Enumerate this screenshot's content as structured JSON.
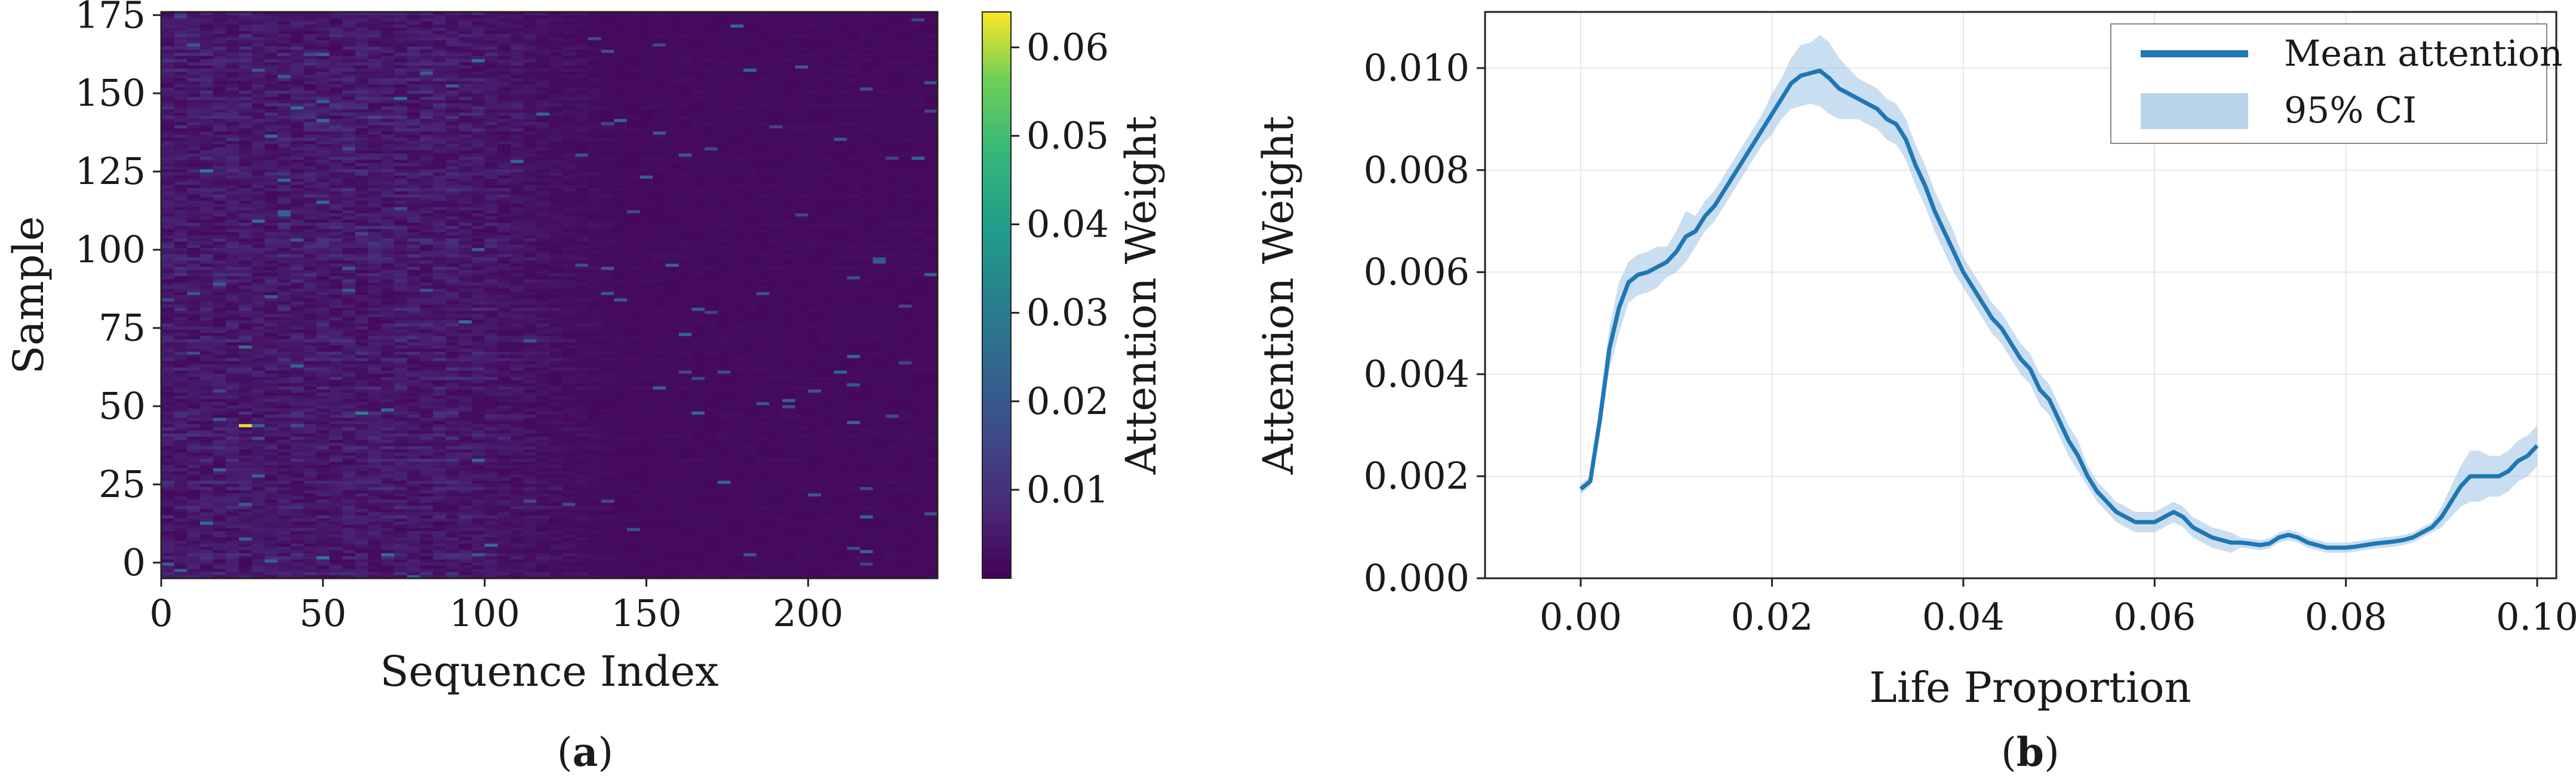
{
  "chart_data": [
    {
      "type": "heatmap",
      "panel_label": "a",
      "xlabel": "Sequence Index",
      "ylabel": "Sample",
      "xlim": [
        0,
        240
      ],
      "ylim": [
        -5,
        176
      ],
      "x_ticks": [
        "0",
        "50",
        "100",
        "150",
        "200"
      ],
      "y_ticks": [
        "0",
        "25",
        "50",
        "75",
        "100",
        "125",
        "150",
        "175"
      ],
      "colorbar": {
        "label": "Attention Weight",
        "range": [
          0.0,
          0.064
        ],
        "ticks": [
          "0.01",
          "0.02",
          "0.03",
          "0.04",
          "0.05",
          "0.06"
        ],
        "colormap": "viridis"
      },
      "rows": 180,
      "cols": 240
    },
    {
      "type": "line",
      "panel_label": "b",
      "xlabel": "Life Proportion",
      "ylabel": "Attention Weight",
      "xlim": [
        -0.01,
        0.102
      ],
      "ylim": [
        0.0,
        0.0111
      ],
      "grid": true,
      "legend_placement": "top-right",
      "x_ticks": [
        "0.00",
        "0.02",
        "0.04",
        "0.06",
        "0.08",
        "0.10"
      ],
      "y_ticks": [
        "0.000",
        "0.002",
        "0.004",
        "0.006",
        "0.008",
        "0.010"
      ],
      "series": [
        {
          "name": "Mean attention",
          "color": "#1f77b4",
          "x": [
            0.0,
            0.001,
            0.002,
            0.003,
            0.004,
            0.005,
            0.006,
            0.007,
            0.008,
            0.009,
            0.01,
            0.011,
            0.012,
            0.013,
            0.014,
            0.015,
            0.016,
            0.017,
            0.018,
            0.019,
            0.02,
            0.021,
            0.022,
            0.023,
            0.024,
            0.025,
            0.026,
            0.027,
            0.028,
            0.029,
            0.03,
            0.031,
            0.032,
            0.033,
            0.034,
            0.035,
            0.036,
            0.037,
            0.038,
            0.039,
            0.04,
            0.041,
            0.042,
            0.043,
            0.044,
            0.045,
            0.046,
            0.047,
            0.048,
            0.049,
            0.05,
            0.051,
            0.052,
            0.053,
            0.054,
            0.055,
            0.056,
            0.057,
            0.058,
            0.059,
            0.06,
            0.061,
            0.062,
            0.063,
            0.064,
            0.065,
            0.066,
            0.067,
            0.068,
            0.069,
            0.07,
            0.071,
            0.072,
            0.073,
            0.074,
            0.075,
            0.076,
            0.077,
            0.078,
            0.079,
            0.08,
            0.081,
            0.082,
            0.083,
            0.084,
            0.085,
            0.086,
            0.087,
            0.088,
            0.089,
            0.09,
            0.091,
            0.092,
            0.093,
            0.094,
            0.095,
            0.096,
            0.097,
            0.098,
            0.099,
            0.1
          ],
          "y": [
            0.00175,
            0.0019,
            0.0031,
            0.0045,
            0.0053,
            0.0058,
            0.00595,
            0.006,
            0.0061,
            0.0062,
            0.0064,
            0.0067,
            0.0068,
            0.0071,
            0.0073,
            0.0076,
            0.0079,
            0.0082,
            0.0085,
            0.0088,
            0.0091,
            0.0094,
            0.0097,
            0.00985,
            0.0099,
            0.00995,
            0.0098,
            0.0096,
            0.0095,
            0.0094,
            0.0093,
            0.0092,
            0.009,
            0.0089,
            0.0086,
            0.0081,
            0.0077,
            0.0072,
            0.0068,
            0.0064,
            0.006,
            0.0057,
            0.0054,
            0.0051,
            0.0049,
            0.0046,
            0.0043,
            0.0041,
            0.0037,
            0.0035,
            0.0031,
            0.0027,
            0.0024,
            0.002,
            0.0017,
            0.0015,
            0.0013,
            0.0012,
            0.0011,
            0.0011,
            0.0011,
            0.0012,
            0.0013,
            0.0012,
            0.001,
            0.0009,
            0.0008,
            0.00075,
            0.0007,
            0.0007,
            0.00068,
            0.00065,
            0.00068,
            0.0008,
            0.00085,
            0.0008,
            0.0007,
            0.00065,
            0.0006,
            0.0006,
            0.0006,
            0.00062,
            0.00065,
            0.00068,
            0.0007,
            0.00072,
            0.00075,
            0.0008,
            0.0009,
            0.001,
            0.0012,
            0.0015,
            0.0018,
            0.002,
            0.002,
            0.002,
            0.002,
            0.0021,
            0.0023,
            0.0024,
            0.0026
          ]
        },
        {
          "name": "95% CI",
          "color": "#a7c8e8",
          "half_width": [
            0.0001,
            0.0001,
            0.0003,
            0.0004,
            0.0005,
            0.0004,
            0.0004,
            0.0004,
            0.0004,
            0.0003,
            0.0004,
            0.0005,
            0.0003,
            0.0003,
            0.0003,
            0.0003,
            0.0003,
            0.0003,
            0.0003,
            0.0003,
            0.0004,
            0.0004,
            0.0005,
            0.0006,
            0.0006,
            0.0007,
            0.0007,
            0.0006,
            0.0005,
            0.0004,
            0.0004,
            0.0004,
            0.0004,
            0.0004,
            0.0004,
            0.0004,
            0.0004,
            0.0004,
            0.0004,
            0.0004,
            0.0003,
            0.0003,
            0.0003,
            0.0003,
            0.0003,
            0.0003,
            0.0003,
            0.0003,
            0.0003,
            0.0003,
            0.0003,
            0.0003,
            0.0003,
            0.0002,
            0.0002,
            0.0002,
            0.0002,
            0.0002,
            0.0002,
            0.0002,
            0.0002,
            0.0002,
            0.0002,
            0.0002,
            0.0002,
            0.0002,
            0.0002,
            0.0002,
            0.0002,
            0.0001,
            0.0001,
            0.0001,
            0.0001,
            0.0001,
            0.0001,
            0.0001,
            0.0001,
            0.0001,
            0.0001,
            0.0001,
            0.0001,
            0.0001,
            0.0001,
            0.0001,
            0.0001,
            0.0001,
            0.0001,
            0.0001,
            0.0001,
            0.0001,
            0.0002,
            0.0003,
            0.0004,
            0.0005,
            0.0005,
            0.0004,
            0.0004,
            0.0004,
            0.0004,
            0.0004,
            0.0004
          ]
        }
      ]
    }
  ]
}
